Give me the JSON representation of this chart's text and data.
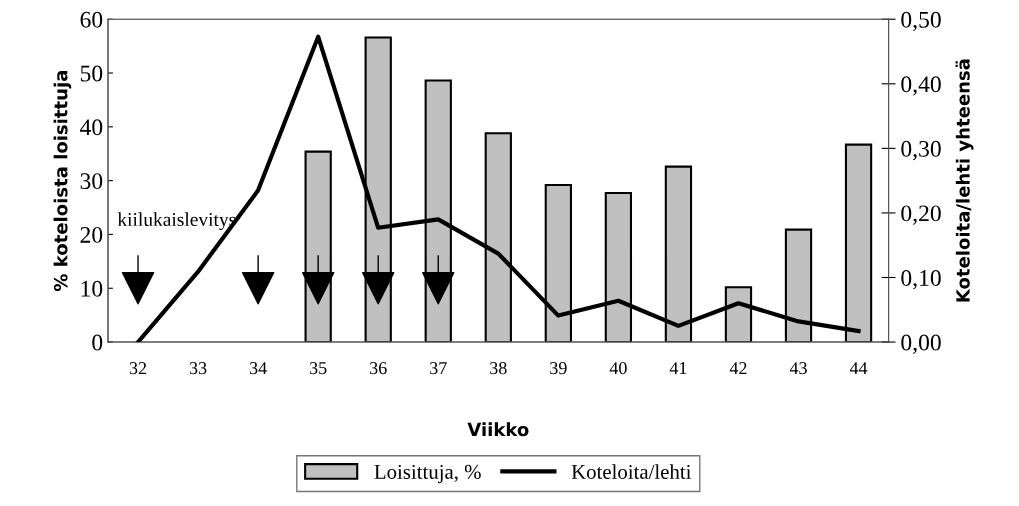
{
  "chart_data": {
    "type": "bar",
    "xlabel": "Viikko",
    "ylabel": "% koteloista loisittuja",
    "y2label": "Koteloita/lehti yhteensä",
    "categories": [
      "32",
      "33",
      "34",
      "35",
      "36",
      "37",
      "38",
      "39",
      "40",
      "41",
      "42",
      "43",
      "44"
    ],
    "series": [
      {
        "name": "Loisittuja, %",
        "color": "#c0c0c0",
        "values": [
          null,
          null,
          null,
          35.4,
          56.6,
          48.6,
          38.8,
          29.2,
          27.7,
          32.6,
          10.2,
          20.9,
          36.7
        ]
      },
      {
        "type": "line",
        "axis": "y2",
        "name": "Koteloita/lehti",
        "color": "#000000",
        "values": [
          0.0,
          0.109,
          0.235,
          0.473,
          0.177,
          0.19,
          0.137,
          0.041,
          0.064,
          0.025,
          0.06,
          0.032,
          0.017
        ]
      },
      {
        "type": "scatter",
        "color": "#000000",
        "marker": "triangle",
        "values": [
          10,
          null,
          10,
          10,
          10,
          10,
          null,
          null,
          null,
          null,
          null,
          null,
          null
        ]
      }
    ],
    "annotations": [
      "kiilukaislevitys"
    ],
    "ylim": [
      0,
      60
    ],
    "yticks": [
      0,
      10,
      20,
      30,
      40,
      50,
      60
    ],
    "y2lim": [
      0,
      0.5
    ],
    "y2ticks": [
      {
        "value": 0,
        "label": "0,00"
      },
      {
        "value": 0.1,
        "label": "0,10"
      },
      {
        "value": 0.2,
        "label": "0,20"
      },
      {
        "value": 0.3,
        "label": "0,30"
      },
      {
        "value": 0.4,
        "label": "0,40"
      },
      {
        "value": 0.5,
        "label": "0,50"
      }
    ],
    "grid": false,
    "legend": "bottom"
  }
}
